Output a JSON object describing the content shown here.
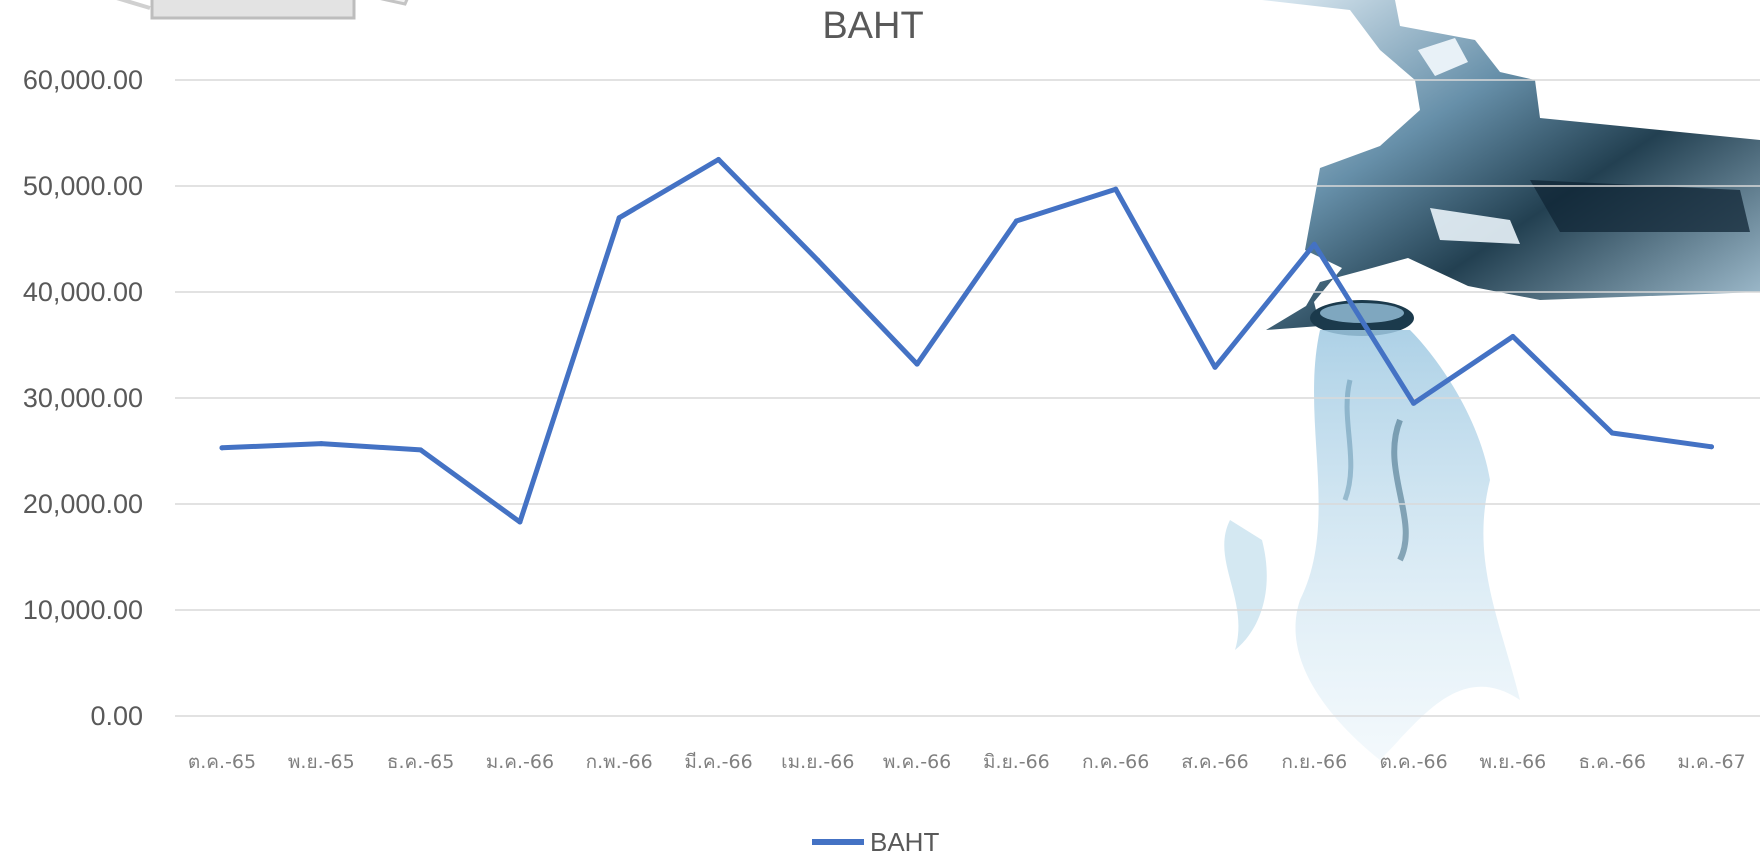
{
  "chart_data": {
    "type": "line",
    "title": "BAHT",
    "categories": [
      "ต.ค.-65",
      "พ.ย.-65",
      "ธ.ค.-65",
      "ม.ค.-66",
      "ก.พ.-66",
      "มี.ค.-66",
      "เม.ย.-66",
      "พ.ค.-66",
      "มิ.ย.-66",
      "ก.ค.-66",
      "ส.ค.-66",
      "ก.ย.-66",
      "ต.ค.-66",
      "พ.ย.-66",
      "ธ.ค.-66",
      "ม.ค.-67"
    ],
    "series": [
      {
        "name": "BAHT",
        "color": "#4472C4",
        "values": [
          25300,
          25700,
          25100,
          18300,
          47000,
          52500,
          43000,
          33200,
          46700,
          49700,
          32900,
          44500,
          29500,
          35800,
          26700,
          25400
        ]
      }
    ],
    "yticks": [
      "0.00",
      "10,000.00",
      "20,000.00",
      "30,000.00",
      "40,000.00",
      "50,000.00",
      "60,000.00"
    ],
    "ylim": [
      0,
      60000
    ],
    "grid": true,
    "legend": "bottom"
  }
}
